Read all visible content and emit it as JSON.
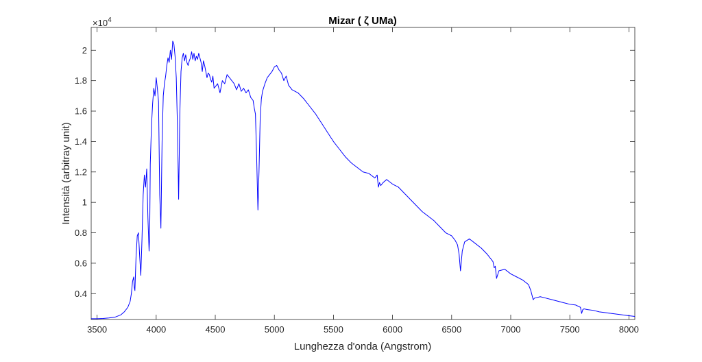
{
  "chart_data": {
    "type": "line",
    "title": "Mizar ( ζ UMa)",
    "xlabel": "Lunghezza d'onda (Angstrom)",
    "ylabel": "Intensità (arbitray unit)",
    "xlim": [
      3450,
      8050
    ],
    "ylim": [
      2300,
      21500
    ],
    "exponent_label": "×10",
    "exponent_value": "4",
    "x_ticks": [
      3500,
      4000,
      4500,
      5000,
      5500,
      6000,
      6500,
      7000,
      7500,
      8000
    ],
    "x_tick_labels": [
      "3500",
      "4000",
      "4500",
      "5000",
      "5500",
      "6000",
      "6500",
      "7000",
      "7500",
      "8000"
    ],
    "y_ticks": [
      4000,
      6000,
      8000,
      10000,
      12000,
      14000,
      16000,
      18000,
      20000
    ],
    "y_tick_labels": [
      "0.4",
      "0.6",
      "0.8",
      "1",
      "1.2",
      "1.4",
      "1.6",
      "1.8",
      "2"
    ],
    "grid": false,
    "series": [
      {
        "color": "#0000ff",
        "x": [
          3450,
          3500,
          3550,
          3600,
          3650,
          3700,
          3730,
          3760,
          3780,
          3790,
          3800,
          3810,
          3815,
          3820,
          3830,
          3840,
          3850,
          3860,
          3870,
          3880,
          3890,
          3900,
          3910,
          3920,
          3930,
          3940,
          3945,
          3950,
          3960,
          3970,
          3980,
          3990,
          4000,
          4010,
          4020,
          4030,
          4040,
          4050,
          4060,
          4070,
          4080,
          4090,
          4100,
          4110,
          4120,
          4130,
          4140,
          4150,
          4160,
          4170,
          4180,
          4190,
          4200,
          4210,
          4220,
          4230,
          4240,
          4250,
          4260,
          4270,
          4280,
          4290,
          4300,
          4310,
          4320,
          4330,
          4340,
          4350,
          4360,
          4370,
          4380,
          4390,
          4400,
          4410,
          4420,
          4430,
          4440,
          4450,
          4460,
          4470,
          4480,
          4490,
          4500,
          4520,
          4540,
          4560,
          4580,
          4600,
          4620,
          4640,
          4660,
          4680,
          4700,
          4720,
          4740,
          4760,
          4780,
          4800,
          4820,
          4830,
          4840,
          4850,
          4861,
          4870,
          4880,
          4890,
          4900,
          4920,
          4940,
          4960,
          4980,
          5000,
          5020,
          5040,
          5060,
          5080,
          5100,
          5120,
          5150,
          5200,
          5250,
          5300,
          5350,
          5400,
          5450,
          5500,
          5550,
          5600,
          5650,
          5700,
          5750,
          5800,
          5850,
          5870,
          5880,
          5890,
          5900,
          5920,
          5950,
          6000,
          6050,
          6100,
          6150,
          6200,
          6250,
          6300,
          6350,
          6400,
          6450,
          6500,
          6530,
          6550,
          6563,
          6575,
          6590,
          6610,
          6650,
          6700,
          6750,
          6800,
          6850,
          6860,
          6869,
          6880,
          6900,
          6950,
          7000,
          7050,
          7100,
          7150,
          7170,
          7180,
          7190,
          7200,
          7250,
          7300,
          7350,
          7400,
          7450,
          7500,
          7550,
          7590,
          7600,
          7610,
          7620,
          7650,
          7700,
          7750,
          7800,
          7850,
          7900,
          7950,
          8000,
          8050
        ],
        "y": [
          2350,
          2350,
          2370,
          2400,
          2450,
          2600,
          2800,
          3100,
          3500,
          4000,
          4800,
          5100,
          4400,
          4200,
          6500,
          7800,
          8000,
          6500,
          5200,
          7600,
          10500,
          11800,
          11000,
          12200,
          9000,
          6800,
          7800,
          12500,
          15000,
          16500,
          17500,
          17000,
          18200,
          17500,
          16600,
          10500,
          8300,
          14000,
          17000,
          17800,
          18300,
          19000,
          19500,
          19200,
          20000,
          19400,
          20600,
          20400,
          19600,
          18200,
          15000,
          10200,
          15800,
          18600,
          19500,
          19800,
          19300,
          19700,
          19200,
          19000,
          19300,
          19500,
          19900,
          19400,
          19800,
          19300,
          19600,
          19400,
          19800,
          19500,
          19200,
          18600,
          19300,
          19000,
          18600,
          18200,
          18500,
          18400,
          18100,
          17900,
          18300,
          17500,
          17600,
          17800,
          17200,
          18000,
          17800,
          18400,
          18200,
          18000,
          17800,
          17400,
          17800,
          17300,
          17500,
          17200,
          17400,
          16900,
          16700,
          16200,
          15800,
          13000,
          9500,
          12000,
          15500,
          16800,
          17300,
          17800,
          18200,
          18400,
          18600,
          18900,
          19000,
          18700,
          18500,
          18000,
          18300,
          17700,
          17400,
          17200,
          16800,
          16300,
          15800,
          15200,
          14600,
          14000,
          13500,
          13000,
          12600,
          12300,
          12000,
          11900,
          11600,
          11800,
          11000,
          11300,
          11100,
          11300,
          11500,
          11200,
          11000,
          10600,
          10200,
          9800,
          9400,
          9100,
          8800,
          8400,
          8000,
          7800,
          7500,
          7200,
          6600,
          5500,
          6800,
          7400,
          7600,
          7300,
          7000,
          6600,
          6100,
          5700,
          5800,
          5000,
          5500,
          5600,
          5300,
          5100,
          4900,
          4600,
          4200,
          3900,
          3600,
          3700,
          3800,
          3700,
          3600,
          3500,
          3400,
          3300,
          3250,
          3100,
          2700,
          2950,
          3000,
          2950,
          2900,
          2800,
          2750,
          2700,
          2650,
          2600,
          2550,
          2500
        ]
      }
    ]
  }
}
